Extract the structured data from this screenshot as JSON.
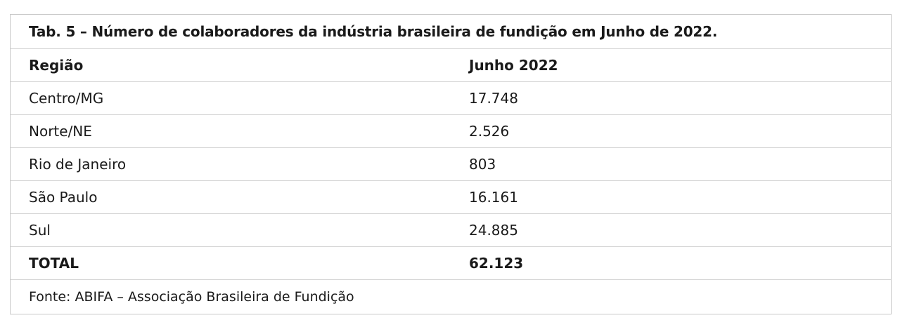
{
  "table": {
    "title": "Tab. 5 – Número de colaboradores da indústria brasileira de fundição em Junho de 2022.",
    "header": {
      "region": "Região",
      "value": "Junho 2022"
    },
    "rows": [
      {
        "region": "Centro/MG",
        "value": "17.748"
      },
      {
        "region": "Norte/NE",
        "value": "2.526"
      },
      {
        "region": "Rio de Janeiro",
        "value": "803"
      },
      {
        "region": "São Paulo",
        "value": "16.161"
      },
      {
        "region": "Sul",
        "value": "24.885"
      }
    ],
    "total": {
      "label": "TOTAL",
      "value": "62.123"
    },
    "source": "Fonte: ABIFA – Associação Brasileira de Fundição"
  }
}
